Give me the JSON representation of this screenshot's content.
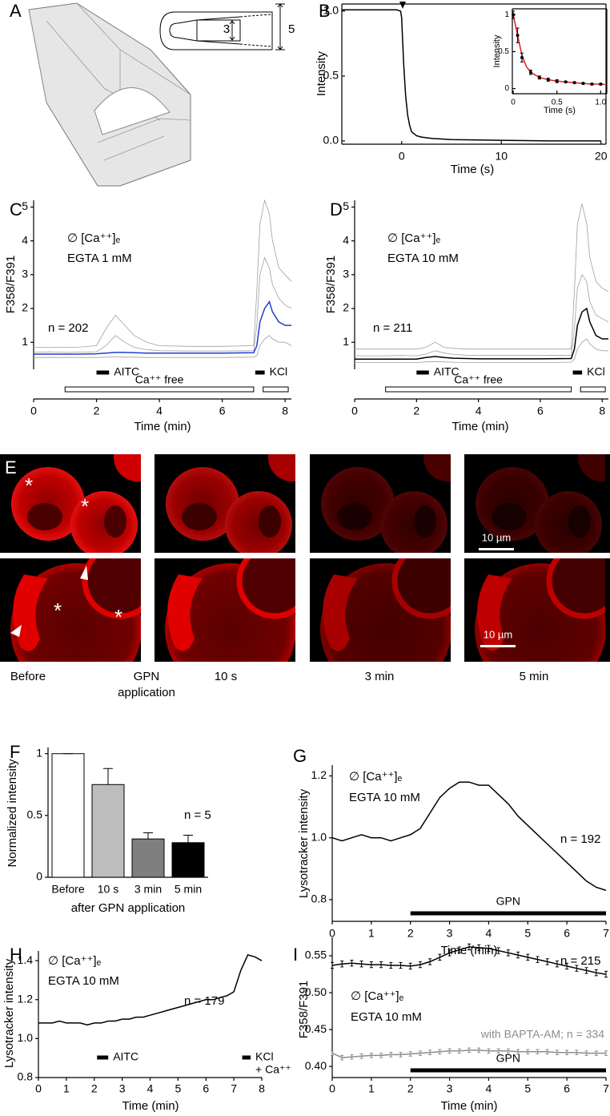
{
  "panel_a": {
    "panel": "A",
    "dimensions": [
      "3",
      "5"
    ]
  },
  "panel_e": {
    "panel": "E",
    "marker": "*",
    "scale_bar": "10 µm",
    "captions": [
      "Before",
      "GPN",
      "application",
      "10 s",
      "3 min",
      "5 min"
    ]
  },
  "chart_data": [
    {
      "type": "line",
      "panel": "B",
      "xlabel": "Time (s)",
      "ylabel": "Intensity",
      "xlim": [
        -6,
        20.5
      ],
      "ylim": [
        -0.025,
        1.055
      ],
      "xticks": [
        0,
        10,
        20
      ],
      "yticks": [
        {
          "value": 0,
          "label": "0.0"
        },
        0.5,
        {
          "value": 1,
          "label": "1.0"
        }
      ],
      "x": [
        -6,
        -4,
        -2,
        -0.5,
        -0.1,
        0,
        0.2,
        0.4,
        0.6,
        0.8,
        1,
        1.5,
        2,
        3,
        5,
        10,
        15,
        20
      ],
      "series": [
        {
          "color": "#000000",
          "values": [
            1.01,
            1.01,
            1.01,
            1.01,
            1.0,
            0.95,
            0.6,
            0.35,
            0.2,
            0.12,
            0.07,
            0.04,
            0.03,
            0.02,
            0.01,
            0.005,
            0.0,
            0.0
          ]
        }
      ]
    },
    {
      "type": "line",
      "xlabel": "Time (s)",
      "ylabel": "Intensity",
      "xlim": [
        -0.01,
        1.07
      ],
      "ylim": [
        -0.07,
        1.08
      ],
      "xticks": [
        0,
        0.5,
        {
          "value": 1,
          "label": "1.0"
        }
      ],
      "yticks": [
        0,
        0.5,
        1
      ],
      "x": [
        0,
        0.05,
        0.1,
        0.2,
        0.3,
        0.4,
        0.5,
        0.6,
        0.7,
        0.8,
        0.9,
        1.0
      ],
      "series": [
        {
          "color": "#e02020",
          "style": "line",
          "x": [
            0,
            0.05,
            0.1,
            0.15,
            0.2,
            0.3,
            0.4,
            0.5,
            0.6,
            0.7,
            0.8,
            0.9,
            1.0,
            1.05
          ],
          "values": [
            1.0,
            0.72,
            0.45,
            0.3,
            0.22,
            0.15,
            0.12,
            0.1,
            0.09,
            0.08,
            0.07,
            0.06,
            0.06,
            0.055
          ]
        },
        {
          "color": "#000000",
          "style": "points",
          "values": [
            1.0,
            0.72,
            0.42,
            0.22,
            0.15,
            0.12,
            0.1,
            0.09,
            0.08,
            0.07,
            0.06,
            0.06
          ],
          "errors": [
            0.05,
            0.1,
            0.06,
            0.03,
            0.02,
            0.02,
            0.02,
            0.01,
            0.01,
            0.01,
            0.01,
            0.01
          ]
        }
      ]
    },
    {
      "type": "line",
      "panel": "C",
      "xlabel": "Time (min)",
      "ylabel": "F358/F391",
      "xlim": [
        0,
        8.2
      ],
      "ylim": [
        0.2,
        5.2
      ],
      "xticks": [
        0,
        2,
        4,
        6,
        8
      ],
      "yticks": [
        1,
        2,
        3,
        4,
        5
      ],
      "annotations": [
        "∅ [Ca⁺⁺]ₑ",
        "EGTA 1 mM",
        "n = 202"
      ],
      "bars": [
        {
          "labels": [
            "AITC"
          ],
          "start": 2.0,
          "end": 2.4
        },
        {
          "labels": [
            "KCl"
          ],
          "start": 7.05,
          "end": 7.35
        }
      ],
      "solution_bars": [
        {
          "label": "Ca⁺⁺ free",
          "start": 1.0,
          "end": 7.0
        },
        {
          "start": 7.3,
          "end": 8.1
        }
      ],
      "x": [
        0,
        0.5,
        1,
        1.5,
        2,
        2.3,
        2.6,
        2.9,
        3.2,
        3.6,
        4,
        5,
        6,
        7,
        7.1,
        7.2,
        7.35,
        7.5,
        7.6,
        7.8,
        8,
        8.2
      ],
      "series": [
        {
          "color": "#a0a0a0",
          "values": [
            0.85,
            0.85,
            0.85,
            0.86,
            0.9,
            1.4,
            1.8,
            1.5,
            1.2,
            1.0,
            0.9,
            0.88,
            0.88,
            0.9,
            2.5,
            4.5,
            5.2,
            4.8,
            4.0,
            3.2,
            3.0,
            2.8
          ]
        },
        {
          "color": "#a0a0a0",
          "values": [
            0.7,
            0.72,
            0.7,
            0.71,
            0.72,
            0.9,
            1.2,
            1.0,
            0.85,
            0.78,
            0.75,
            0.74,
            0.74,
            0.75,
            1.5,
            3.0,
            3.5,
            3.2,
            2.7,
            2.3,
            2.1,
            2.0
          ]
        },
        {
          "color": "#a0a0a0",
          "values": [
            0.55,
            0.55,
            0.55,
            0.55,
            0.55,
            0.56,
            0.57,
            0.56,
            0.56,
            0.55,
            0.55,
            0.55,
            0.55,
            0.56,
            0.6,
            0.9,
            1.1,
            1.2,
            1.1,
            1.0,
            1.0,
            0.9
          ]
        },
        {
          "color": "#1f3fd0",
          "values": [
            0.65,
            0.65,
            0.65,
            0.65,
            0.66,
            0.68,
            0.7,
            0.7,
            0.69,
            0.68,
            0.68,
            0.68,
            0.68,
            0.69,
            0.9,
            1.6,
            2.0,
            2.2,
            1.9,
            1.6,
            1.5,
            1.5
          ]
        }
      ]
    },
    {
      "type": "line",
      "panel": "D",
      "xlabel": "Time (min)",
      "ylabel": "F358/F391",
      "xlim": [
        0,
        8.2
      ],
      "ylim": [
        0.2,
        5.2
      ],
      "xticks": [
        0,
        2,
        4,
        6,
        8
      ],
      "yticks": [
        1,
        2,
        3,
        4,
        5
      ],
      "annotations": [
        "∅ [Ca⁺⁺]ₑ",
        "EGTA 10 mM",
        "n = 211"
      ],
      "bars": [
        {
          "labels": [
            "AITC"
          ],
          "start": 2.0,
          "end": 2.4
        },
        {
          "labels": [
            "KCl"
          ],
          "start": 7.05,
          "end": 7.35
        }
      ],
      "solution_bars": [
        {
          "label": "Ca⁺⁺ free",
          "start": 1.0,
          "end": 7.0
        },
        {
          "start": 7.3,
          "end": 8.1
        }
      ],
      "x": [
        0,
        0.5,
        1,
        1.5,
        2,
        2.3,
        2.6,
        2.9,
        3.2,
        3.6,
        4,
        5,
        6,
        7,
        7.1,
        7.2,
        7.35,
        7.5,
        7.6,
        7.8,
        8,
        8.2
      ],
      "series": [
        {
          "color": "#a0a0a0",
          "values": [
            0.8,
            0.8,
            0.8,
            0.8,
            0.8,
            0.85,
            1.0,
            0.85,
            0.82,
            0.8,
            0.8,
            0.8,
            0.8,
            0.8,
            2.5,
            4.5,
            5.1,
            4.5,
            3.5,
            2.8,
            2.6,
            2.5
          ]
        },
        {
          "color": "#a0a0a0",
          "values": [
            0.6,
            0.6,
            0.6,
            0.61,
            0.6,
            0.65,
            0.75,
            0.68,
            0.64,
            0.62,
            0.61,
            0.61,
            0.61,
            0.62,
            1.4,
            2.6,
            3.0,
            2.8,
            2.2,
            1.8,
            1.7,
            1.6
          ]
        },
        {
          "color": "#a0a0a0",
          "values": [
            0.4,
            0.4,
            0.4,
            0.4,
            0.4,
            0.42,
            0.43,
            0.42,
            0.41,
            0.4,
            0.4,
            0.4,
            0.4,
            0.41,
            0.5,
            0.8,
            1.0,
            1.1,
            0.95,
            0.8,
            0.75,
            0.75
          ]
        },
        {
          "color": "#000000",
          "values": [
            0.5,
            0.5,
            0.5,
            0.5,
            0.5,
            0.55,
            0.58,
            0.55,
            0.53,
            0.52,
            0.51,
            0.51,
            0.51,
            0.52,
            0.8,
            1.5,
            1.9,
            2.0,
            1.6,
            1.2,
            1.1,
            1.1
          ]
        }
      ]
    },
    {
      "type": "bar",
      "panel": "F",
      "xlabel": "after GPN application",
      "ylabel": "Normalized intensity",
      "categories": [
        "Before",
        "10 s",
        "3 min",
        "5 min"
      ],
      "values": [
        1,
        0.75,
        0.31,
        0.28
      ],
      "errors": [
        0,
        0.13,
        0.05,
        0.06
      ],
      "colors": [
        "#ffffff",
        "#bdbdbd",
        "#7f7f7f",
        "#000000"
      ],
      "ylim": [
        0,
        1.05
      ],
      "yticks": [
        0,
        0.5,
        1
      ],
      "annotations": [
        "n = 5"
      ]
    },
    {
      "type": "line",
      "panel": "G",
      "xlabel": "Time (min)",
      "ylabel": "Lysotracker intensity",
      "xlim": [
        0,
        7
      ],
      "ylim": [
        0.73,
        1.235
      ],
      "xticks": [
        0,
        1,
        2,
        3,
        4,
        5,
        6,
        7
      ],
      "yticks": [
        0.8,
        {
          "value": 1,
          "label": "1.0"
        },
        1.2
      ],
      "annotations": [
        "∅ [Ca⁺⁺]ₑ",
        "EGTA 10 mM",
        "n = 192"
      ],
      "bars": [
        {
          "labels": [
            "GPN"
          ],
          "start": 2,
          "end": 7
        }
      ],
      "x": [
        0,
        0.25,
        0.5,
        0.75,
        1,
        1.25,
        1.5,
        1.75,
        2,
        2.25,
        2.5,
        2.75,
        3,
        3.25,
        3.5,
        3.75,
        4,
        4.25,
        4.5,
        4.75,
        5,
        5.25,
        5.5,
        5.75,
        6,
        6.25,
        6.5,
        6.75,
        7
      ],
      "series": [
        {
          "color": "#000000",
          "values": [
            1.0,
            0.99,
            1.0,
            1.01,
            1.0,
            1.0,
            0.99,
            1.0,
            1.01,
            1.03,
            1.08,
            1.13,
            1.16,
            1.18,
            1.18,
            1.17,
            1.17,
            1.14,
            1.11,
            1.07,
            1.04,
            1.01,
            0.98,
            0.95,
            0.92,
            0.89,
            0.86,
            0.84,
            0.83
          ]
        }
      ]
    },
    {
      "type": "line",
      "panel": "H",
      "xlabel": "Time (min)",
      "ylabel": "Lysotracker intensity",
      "xlim": [
        0,
        8
      ],
      "ylim": [
        0.8,
        1.45
      ],
      "xticks": [
        0,
        1,
        2,
        3,
        4,
        5,
        6,
        7,
        8
      ],
      "yticks": [
        0.8,
        {
          "value": 1,
          "label": "1.0"
        },
        1.2,
        1.4
      ],
      "annotations": [
        "∅ [Ca⁺⁺]ₑ",
        "EGTA 10 mM",
        "n = 179"
      ],
      "bars": [
        {
          "labels": [
            "AITC"
          ],
          "start": 2.1,
          "end": 2.5
        },
        {
          "labels": [
            "KCl",
            "+ Ca⁺⁺"
          ],
          "start": 7.3,
          "end": 7.6
        }
      ],
      "x": [
        0,
        0.25,
        0.5,
        0.75,
        1,
        1.25,
        1.5,
        1.75,
        2,
        2.25,
        2.5,
        2.75,
        3,
        3.25,
        3.5,
        3.75,
        4,
        4.25,
        4.5,
        4.75,
        5,
        5.25,
        5.5,
        5.75,
        6,
        6.25,
        6.5,
        6.75,
        7,
        7.25,
        7.5,
        7.75,
        8
      ],
      "series": [
        {
          "color": "#000000",
          "values": [
            1.08,
            1.08,
            1.08,
            1.09,
            1.08,
            1.08,
            1.08,
            1.07,
            1.08,
            1.08,
            1.09,
            1.09,
            1.1,
            1.1,
            1.11,
            1.11,
            1.12,
            1.13,
            1.14,
            1.15,
            1.16,
            1.17,
            1.18,
            1.19,
            1.2,
            1.2,
            1.21,
            1.22,
            1.24,
            1.35,
            1.43,
            1.42,
            1.4
          ]
        }
      ]
    },
    {
      "type": "line",
      "panel": "I",
      "xlabel": "Time (min)",
      "ylabel": "F358/F391",
      "xlim": [
        0,
        7
      ],
      "ylim": [
        0.385,
        0.575
      ],
      "xticks": [
        0,
        1,
        2,
        3,
        4,
        5,
        6,
        7
      ],
      "yticks": [
        {
          "value": 0.4,
          "label": "0.40"
        },
        0.45,
        {
          "value": 0.5,
          "label": "0.50"
        },
        0.55
      ],
      "annotations": [
        "n = 215",
        "∅ [Ca⁺⁺]ₑ",
        "EGTA 10 mM"
      ],
      "bars": [
        {
          "labels": [
            "GPN"
          ],
          "start": 2,
          "end": 7
        }
      ],
      "x": [
        0,
        0.25,
        0.5,
        0.75,
        1,
        1.25,
        1.5,
        1.75,
        2,
        2.25,
        2.5,
        2.75,
        3,
        3.25,
        3.5,
        3.75,
        4,
        4.25,
        4.5,
        4.75,
        5,
        5.25,
        5.5,
        5.75,
        6,
        6.25,
        6.5,
        6.75,
        7
      ],
      "series": [
        {
          "color": "#000000",
          "values": [
            0.537,
            0.539,
            0.54,
            0.539,
            0.538,
            0.538,
            0.537,
            0.537,
            0.536,
            0.538,
            0.542,
            0.548,
            0.554,
            0.558,
            0.562,
            0.561,
            0.56,
            0.557,
            0.554,
            0.551,
            0.548,
            0.545,
            0.542,
            0.539,
            0.536,
            0.533,
            0.53,
            0.527,
            0.525
          ],
          "errors": [
            0.004,
            0.004,
            0.004,
            0.004,
            0.004,
            0.004,
            0.004,
            0.004,
            0.004,
            0.004,
            0.004,
            0.004,
            0.004,
            0.004,
            0.004,
            0.004,
            0.004,
            0.004,
            0.004,
            0.004,
            0.004,
            0.004,
            0.004,
            0.004,
            0.004,
            0.004,
            0.004,
            0.004,
            0.004
          ]
        },
        {
          "name": "with BAPTA-AM; n = 334",
          "color": "#8c8c8c",
          "values": [
            0.418,
            0.412,
            0.413,
            0.414,
            0.415,
            0.415,
            0.416,
            0.416,
            0.417,
            0.418,
            0.419,
            0.42,
            0.421,
            0.421,
            0.422,
            0.422,
            0.421,
            0.421,
            0.421,
            0.42,
            0.42,
            0.42,
            0.42,
            0.419,
            0.419,
            0.419,
            0.418,
            0.418,
            0.418
          ],
          "errors": [
            0.003,
            0.003,
            0.003,
            0.003,
            0.003,
            0.003,
            0.003,
            0.003,
            0.003,
            0.003,
            0.003,
            0.003,
            0.003,
            0.003,
            0.003,
            0.003,
            0.003,
            0.003,
            0.003,
            0.003,
            0.003,
            0.003,
            0.003,
            0.003,
            0.003,
            0.003,
            0.003,
            0.003,
            0.003
          ]
        }
      ]
    }
  ]
}
